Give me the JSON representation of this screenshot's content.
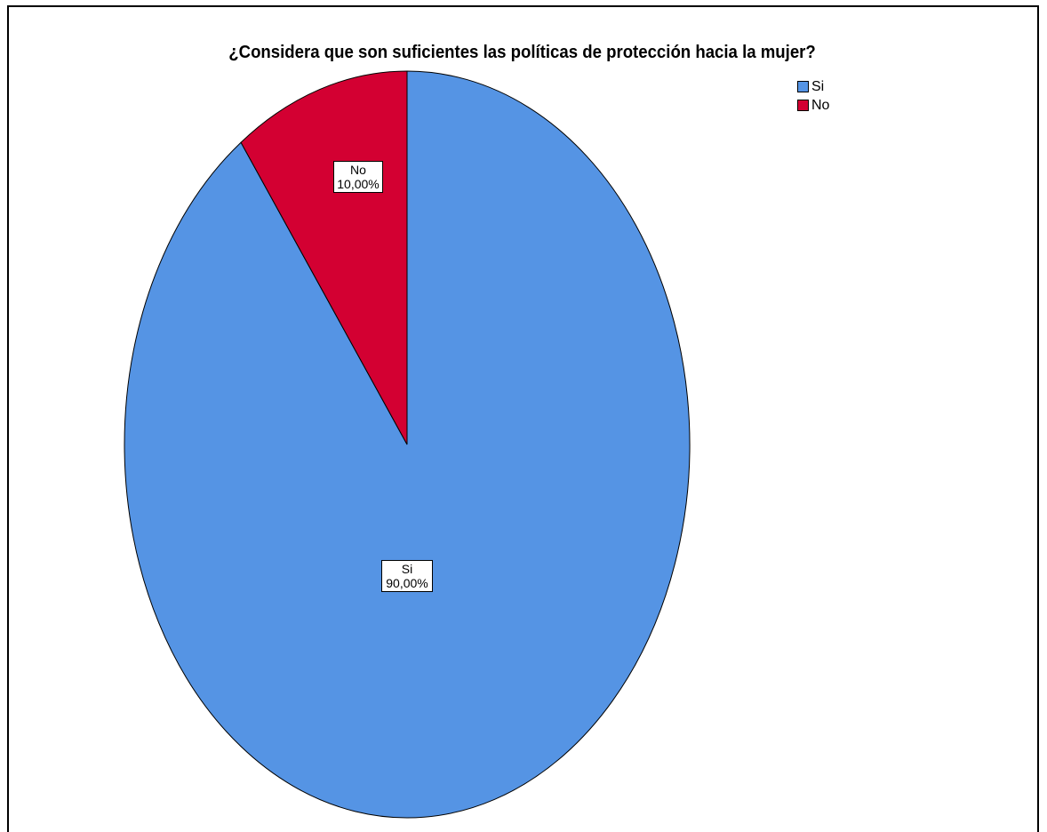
{
  "chart_data": {
    "type": "pie",
    "title": "¿Considera que son suficientes las políticas de protección hacia la mujer?",
    "slices": [
      {
        "name": "Si",
        "value": 90.0,
        "label": "90,00%",
        "color": "#5594e4"
      },
      {
        "name": "No",
        "value": 10.0,
        "label": "10,00%",
        "color": "#d30032"
      }
    ],
    "legend": {
      "placement": "top-right",
      "items": [
        "Si",
        "No"
      ]
    },
    "start_angle_from": "top",
    "direction": "clockwise"
  }
}
